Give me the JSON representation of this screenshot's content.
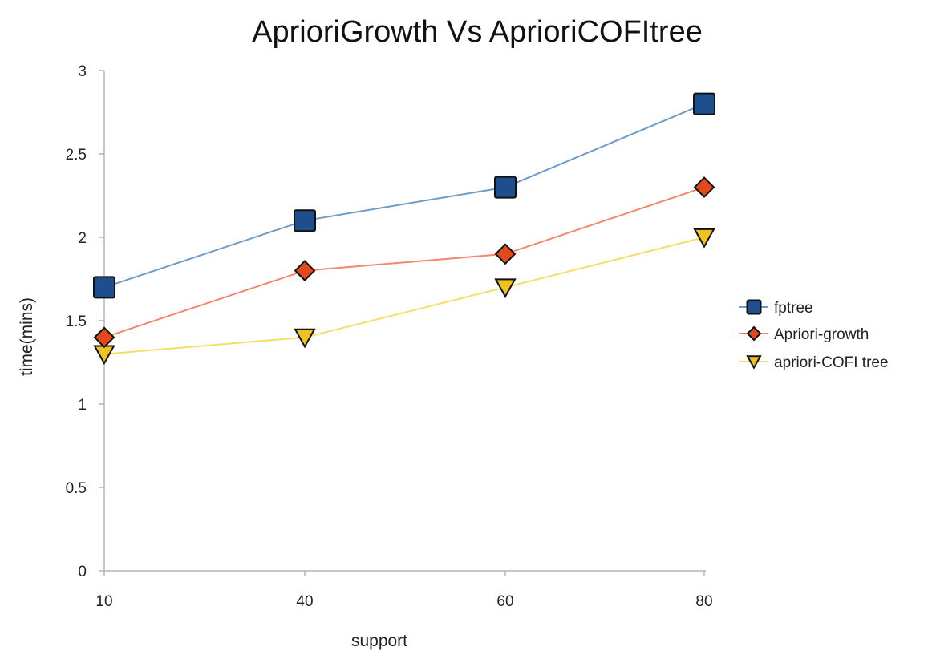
{
  "chart_data": {
    "type": "line",
    "title": "AprioriGrowth Vs AprioriCOFItree",
    "xlabel": "support",
    "ylabel": "time(mins)",
    "categories": [
      "10",
      "40",
      "60",
      "80"
    ],
    "ylim": [
      0,
      3
    ],
    "yticks": [
      "0",
      "0.5",
      "1",
      "1.5",
      "2",
      "2.5",
      "3"
    ],
    "grid": false,
    "legend_position": "right",
    "series": [
      {
        "name": "fptree",
        "values": [
          1.7,
          2.1,
          2.3,
          2.8
        ],
        "marker": "square",
        "line_color": "#6f9bc8",
        "marker_color": "#1f4e8c"
      },
      {
        "name": "Apriori-growth",
        "values": [
          1.4,
          1.8,
          1.9,
          2.3
        ],
        "marker": "diamond",
        "line_color": "#f4866a",
        "marker_color": "#e24a1c"
      },
      {
        "name": "apriori-COFI tree",
        "values": [
          1.3,
          1.4,
          1.7,
          2.0
        ],
        "marker": "triangle-down",
        "line_color": "#f5dd6a",
        "marker_color": "#efc21c"
      }
    ]
  }
}
